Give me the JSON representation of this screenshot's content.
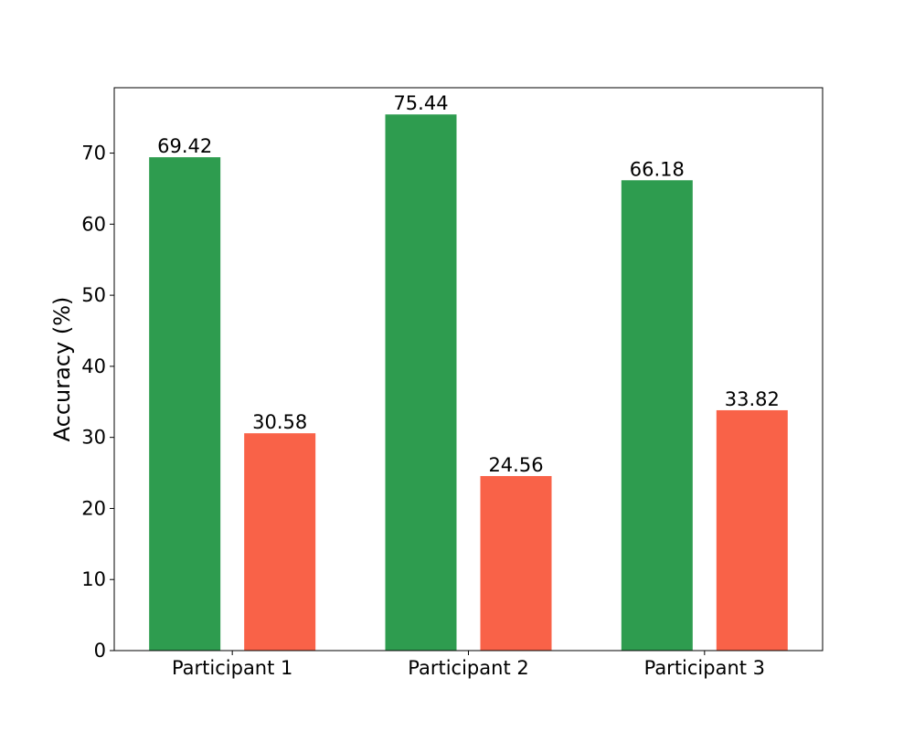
{
  "chart_data": {
    "type": "bar",
    "title": "",
    "xlabel": "",
    "ylabel": "Accuracy (%)",
    "categories": [
      "Participant 1",
      "Participant 2",
      "Participant 3"
    ],
    "series": [
      {
        "color": "#2e9c4f",
        "values": [
          69.42,
          75.44,
          66.18
        ]
      },
      {
        "color": "#f96248",
        "values": [
          30.58,
          24.56,
          33.82
        ]
      }
    ],
    "ylim": [
      0,
      79.2
    ],
    "yticks": [
      0,
      10,
      20,
      30,
      40,
      50,
      60,
      70
    ],
    "grid": false,
    "legend": "none"
  }
}
